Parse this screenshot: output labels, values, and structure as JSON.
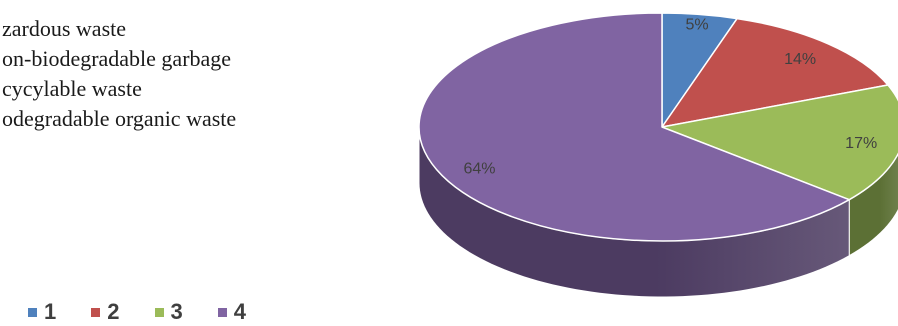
{
  "chart_data": {
    "type": "pie",
    "style": "3d",
    "categories": [
      "1",
      "2",
      "3",
      "4"
    ],
    "values": [
      5,
      14,
      17,
      64
    ],
    "data_labels": [
      "5%",
      "14%",
      "17%",
      "64%"
    ],
    "category_descriptions": [
      "zardous waste",
      "on-biodegradable garbage",
      "cycylable waste",
      "odegradable organic waste"
    ],
    "colors": [
      "#4f81bd",
      "#c0504d",
      "#9bbb59",
      "#8064a2"
    ],
    "side_colors": [
      "#2e4d72",
      "#742f2d",
      "#5c7035",
      "#4c3b61"
    ],
    "legend_position": "bottom-left",
    "title": ""
  }
}
